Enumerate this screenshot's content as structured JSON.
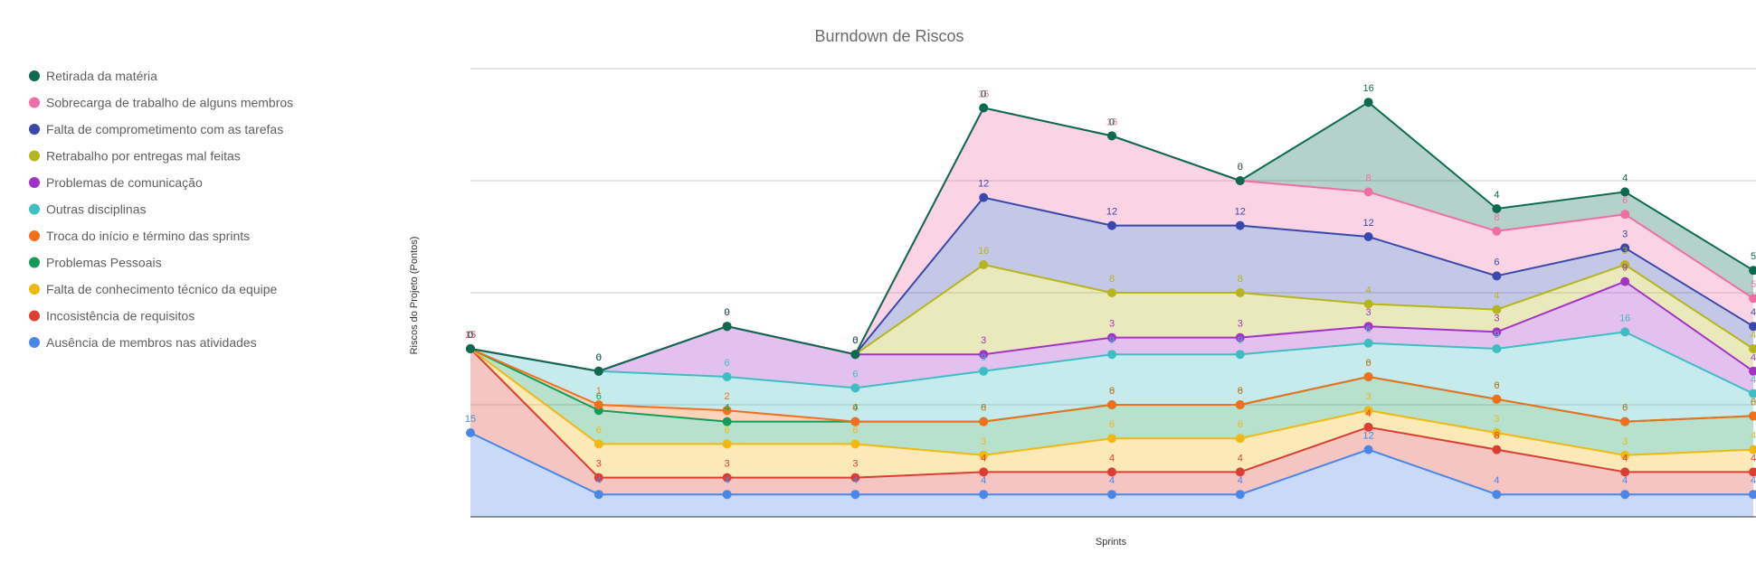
{
  "chart_data": {
    "type": "area",
    "stacked": true,
    "title": "Burndown de Riscos",
    "xlabel": "Sprints",
    "ylabel": "Riscos do Projeto (Pontos)",
    "ylim": [
      0,
      80
    ],
    "grid": true,
    "legend_position": "left",
    "x": [
      "1",
      "2",
      "3",
      "4",
      "5",
      "6",
      "7",
      "8",
      "9",
      "10",
      "11"
    ],
    "series": [
      {
        "name": "Ausência de membros nas atividades",
        "color": "#4a86e8",
        "values": [
          15,
          4,
          4,
          4,
          4,
          4,
          4,
          12,
          4,
          4,
          4
        ]
      },
      {
        "name": "Incosistência de requisitos",
        "color": "#dc3e33",
        "values": [
          15,
          3,
          3,
          3,
          4,
          4,
          4,
          4,
          8,
          4,
          4
        ]
      },
      {
        "name": "Falta de conhecimento técnico da equipe",
        "color": "#f1b810",
        "values": [
          0,
          6,
          6,
          6,
          3,
          6,
          6,
          3,
          3,
          3,
          4
        ]
      },
      {
        "name": "Problemas Pessoais",
        "color": "#0f9d58",
        "values": [
          0,
          6,
          4,
          4,
          6,
          6,
          6,
          6,
          6,
          6,
          6
        ]
      },
      {
        "name": "Troca do início e término das sprints",
        "color": "#f36f1a",
        "values": [
          0,
          1,
          2,
          0,
          0,
          0,
          0,
          0,
          0,
          0,
          0
        ]
      },
      {
        "name": "Outras disciplinas",
        "color": "#3ebec3",
        "values": [
          0,
          6,
          6,
          6,
          9,
          9,
          9,
          6,
          9,
          16,
          4
        ]
      },
      {
        "name": "Problemas de comunicação",
        "color": "#a333c8",
        "values": [
          0,
          0,
          9,
          6,
          3,
          3,
          3,
          3,
          3,
          9,
          4
        ]
      },
      {
        "name": "Retrabalho por entregas mal feitas",
        "color": "#b6b51d",
        "values": [
          0,
          0,
          0,
          0,
          16,
          8,
          8,
          4,
          4,
          3,
          4
        ]
      },
      {
        "name": "Falta de comprometimento com as tarefas",
        "color": "#3949ab",
        "values": [
          0,
          0,
          0,
          0,
          12,
          12,
          12,
          12,
          6,
          3,
          4
        ]
      },
      {
        "name": "Sobrecarga de trabalho de alguns membros",
        "color": "#ef6fa4",
        "values": [
          0,
          0,
          0,
          0,
          16,
          16,
          8,
          8,
          8,
          6,
          5
        ]
      },
      {
        "name": "Retirada da matéria",
        "color": "#0b6a4f",
        "values": [
          0,
          0,
          0,
          0,
          0,
          0,
          0,
          16,
          4,
          4,
          5
        ]
      }
    ]
  }
}
